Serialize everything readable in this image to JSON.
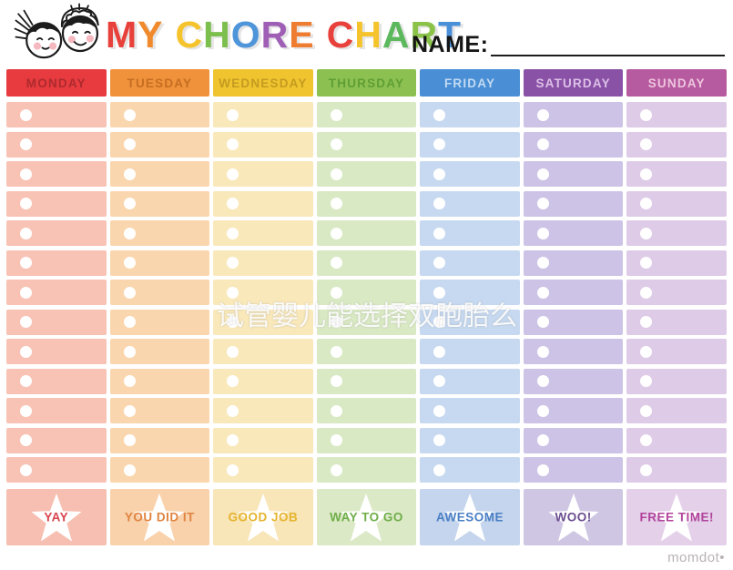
{
  "title": {
    "letters": [
      {
        "ch": "M",
        "color": "#E8403A"
      },
      {
        "ch": "Y",
        "color": "#F08A2C"
      },
      {
        "ch": " ",
        "color": ""
      },
      {
        "ch": "C",
        "color": "#F5C32C"
      },
      {
        "ch": "H",
        "color": "#7DBF4E"
      },
      {
        "ch": "O",
        "color": "#4E95D9"
      },
      {
        "ch": "R",
        "color": "#9E5FB5"
      },
      {
        "ch": "E",
        "color": "#EF7D31"
      },
      {
        "ch": " ",
        "color": ""
      },
      {
        "ch": "C",
        "color": "#E8403A"
      },
      {
        "ch": "H",
        "color": "#F5C32C"
      },
      {
        "ch": "A",
        "color": "#5CB85C"
      },
      {
        "ch": "R",
        "color": "#8BC34A"
      },
      {
        "ch": "T",
        "color": "#4A90D9"
      }
    ]
  },
  "name": {
    "label": "NAME:",
    "value": ""
  },
  "watermark": "试管婴儿能选择双胞胎么",
  "brand": "momdot•",
  "grid": {
    "rows_per_column": 13,
    "columns": [
      {
        "day": "MONDAY",
        "header_bg": "#E73B3F",
        "header_fg": "#AE2A2E",
        "cell_bg": "#F8C2B4",
        "footer_bg": "#F6BFB1",
        "footer_fg": "#D8444E",
        "footer_label": "YAY"
      },
      {
        "day": "TUESDAY",
        "header_bg": "#F0923B",
        "header_fg": "#C56E22",
        "cell_bg": "#FAD6AE",
        "footer_bg": "#F9D2AC",
        "footer_fg": "#E08441",
        "footer_label": "YOU DID IT"
      },
      {
        "day": "WEDNESDAY",
        "header_bg": "#EFC42F",
        "header_fg": "#C49B20",
        "cell_bg": "#F9E8BA",
        "footer_bg": "#F8E5B8",
        "footer_fg": "#E5B42E",
        "footer_label": "GOOD JOB"
      },
      {
        "day": "THURSDAY",
        "header_bg": "#8CC152",
        "header_fg": "#5F9E34",
        "cell_bg": "#D9E9C3",
        "footer_bg": "#DCE9C6",
        "footer_fg": "#6FAE4A",
        "footer_label": "WAY TO GO"
      },
      {
        "day": "FRIDAY",
        "header_bg": "#4A8FD5",
        "header_fg": "#C2DAF2",
        "cell_bg": "#C6D9F0",
        "footer_bg": "#C4D5ED",
        "footer_fg": "#4A7FC4",
        "footer_label": "AWESOME"
      },
      {
        "day": "SATURDAY",
        "header_bg": "#8A52A7",
        "header_fg": "#DCC0E7",
        "cell_bg": "#CDC3E6",
        "footer_bg": "#CFC6E3",
        "footer_fg": "#6A4D8F",
        "footer_label": "WOO!"
      },
      {
        "day": "SUNDAY",
        "header_bg": "#B75BA0",
        "header_fg": "#EEC5DE",
        "cell_bg": "#DECBE7",
        "footer_bg": "#E4D0E9",
        "footer_fg": "#B2439C",
        "footer_label": "FREE TIME!"
      }
    ]
  }
}
